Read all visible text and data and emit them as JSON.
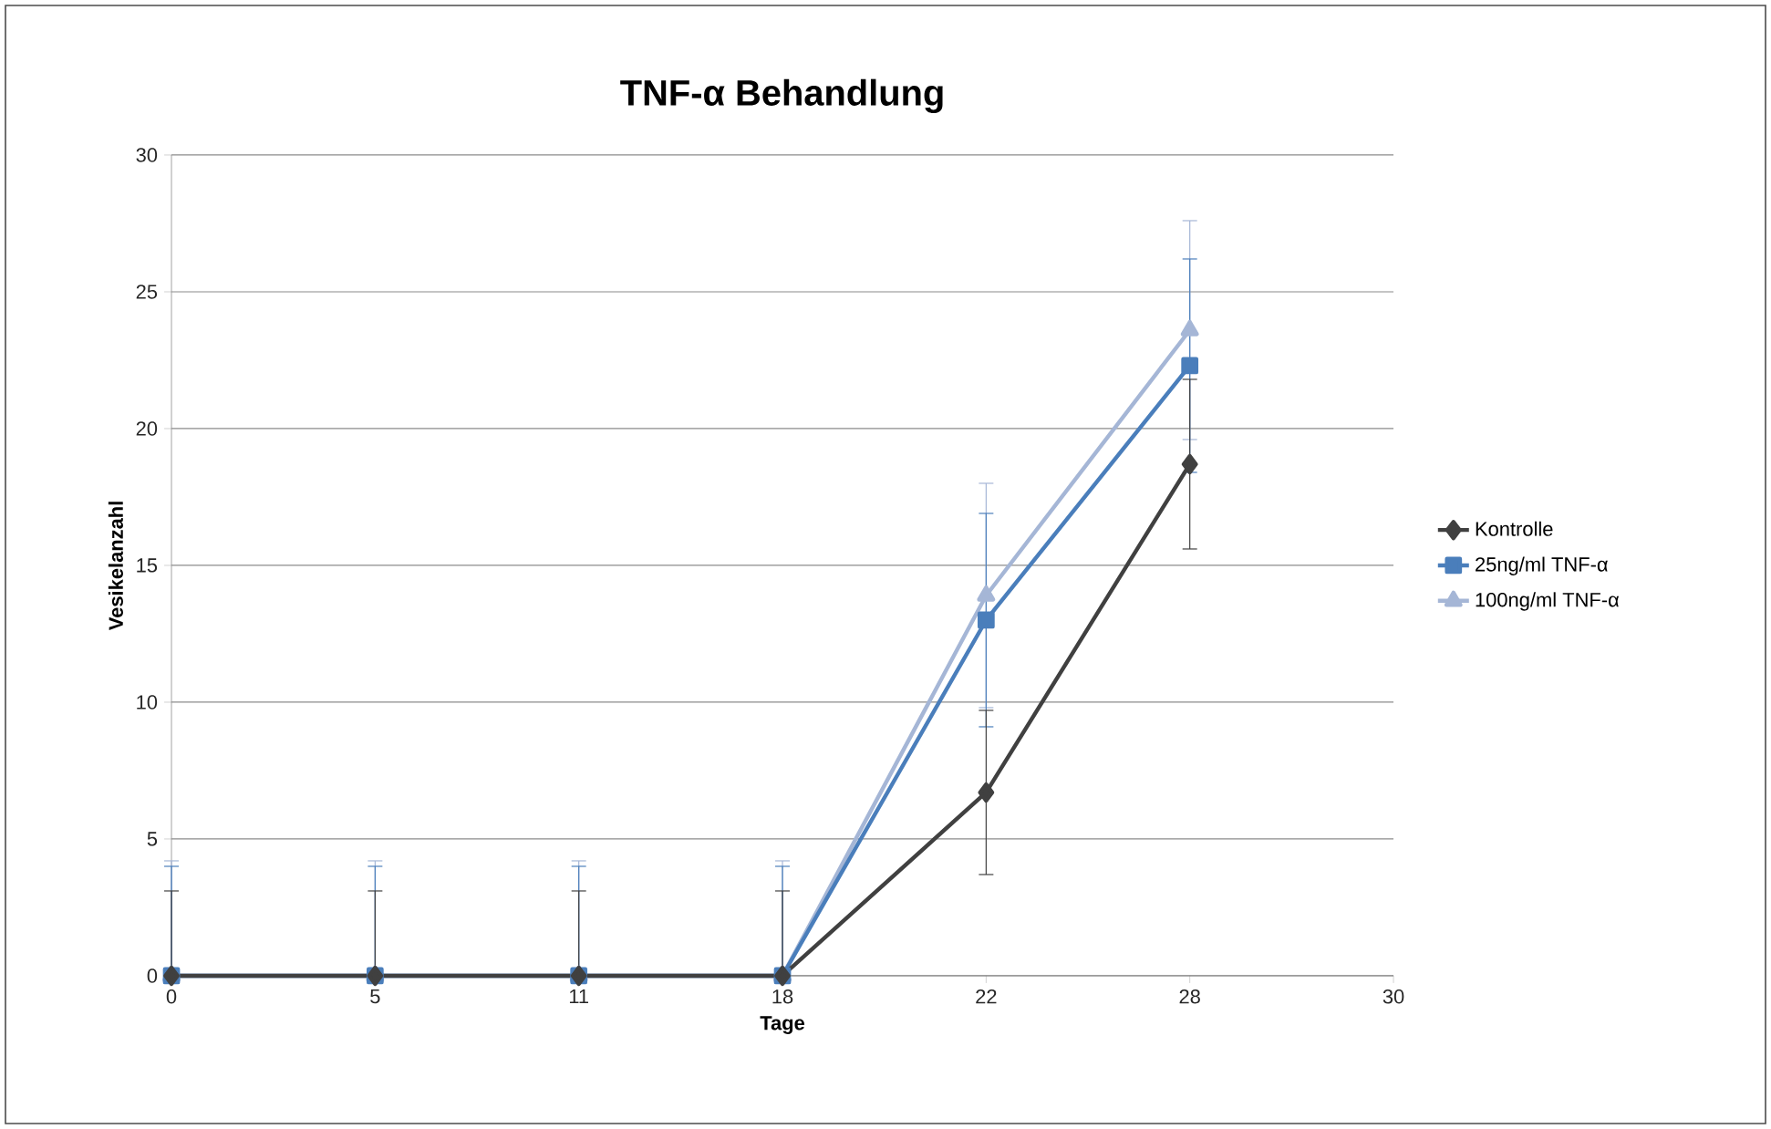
{
  "chart_data": {
    "type": "line",
    "title": "TNF-α Behandlung",
    "xlabel": "Tage",
    "ylabel": "Vesikelanzahl",
    "categories": [
      "0",
      "5",
      "11",
      "18",
      "22",
      "28",
      "30"
    ],
    "series": [
      {
        "name": "Kontrolle",
        "color": "#404040",
        "marker": "diamond",
        "values": [
          0,
          0,
          0,
          0,
          6.7,
          18.7,
          null
        ],
        "errors": [
          [
            0,
            3.1
          ],
          [
            0,
            3.1
          ],
          [
            0,
            3.1
          ],
          [
            0,
            3.1
          ],
          3.0,
          3.1,
          null
        ]
      },
      {
        "name": "25ng/ml TNF-α",
        "color": "#4a7ebb",
        "marker": "square",
        "values": [
          0,
          0,
          0,
          0,
          13.0,
          22.3,
          null
        ],
        "errors": [
          [
            0,
            4.0
          ],
          [
            0,
            4.0
          ],
          [
            0,
            4.0
          ],
          [
            0,
            4.0
          ],
          3.9,
          3.9,
          null
        ]
      },
      {
        "name": "100ng/ml TNF-α",
        "color": "#a5b6d6",
        "marker": "triangle",
        "values": [
          0,
          0,
          0,
          0,
          13.9,
          23.6,
          null
        ],
        "errors": [
          [
            0,
            4.2
          ],
          [
            0,
            4.2
          ],
          [
            0,
            4.2
          ],
          [
            0,
            4.2
          ],
          4.1,
          4.0,
          null
        ]
      }
    ],
    "ylim": [
      0,
      30
    ],
    "yticks": [
      0,
      5,
      10,
      15,
      20,
      25,
      30
    ],
    "grid": "y",
    "legend": "right"
  }
}
